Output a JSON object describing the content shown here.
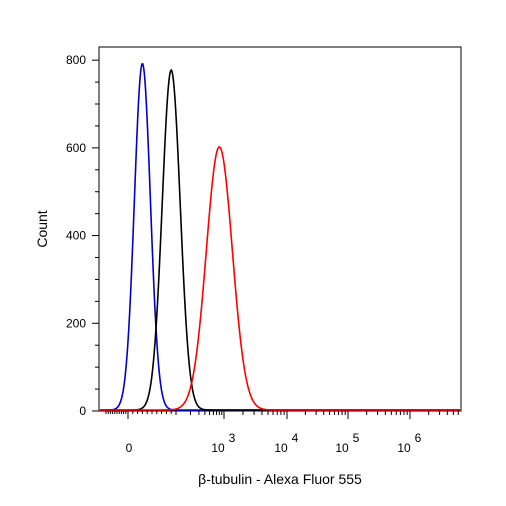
{
  "chart_data": {
    "type": "line",
    "title": "",
    "xlabel": "β-tubulin - Alexa Fluor 555",
    "ylabel": "Count",
    "x_scale": "biexponential",
    "ylim": [
      0,
      830
    ],
    "grid": false,
    "y_ticks": [
      {
        "value": 0,
        "label": "0"
      },
      {
        "value": 200,
        "label": "200"
      },
      {
        "value": 400,
        "label": "400"
      },
      {
        "value": 600,
        "label": "600"
      },
      {
        "value": 800,
        "label": "800"
      }
    ],
    "x_ticks": [
      {
        "value": 0,
        "base": "0",
        "exp": ""
      },
      {
        "value": 1000,
        "base": "10",
        "exp": "3"
      },
      {
        "value": 10000,
        "base": "10",
        "exp": "4"
      },
      {
        "value": 100000,
        "base": "10",
        "exp": "5"
      },
      {
        "value": 1000000,
        "base": "10",
        "exp": "6"
      }
    ],
    "series": [
      {
        "color": "#0000cc",
        "peak_x": 30,
        "peak_y": 790
      },
      {
        "color": "#000000",
        "peak_x": 90,
        "peak_y": 775
      },
      {
        "color": "#ff0000",
        "peak_x": 800,
        "peak_y": 600
      }
    ]
  }
}
